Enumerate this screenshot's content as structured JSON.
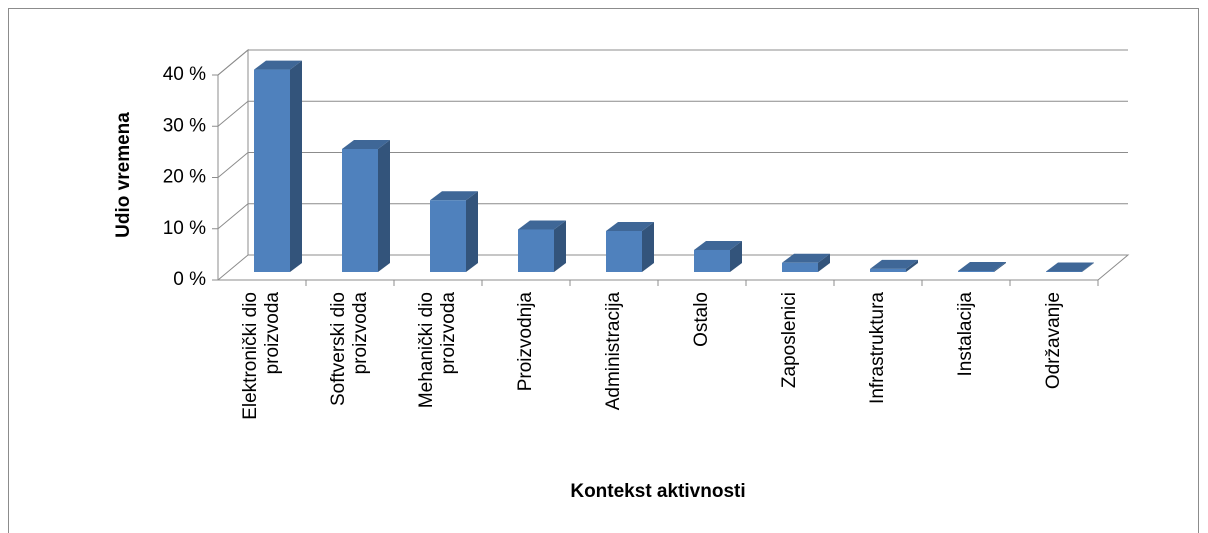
{
  "chart_data": {
    "type": "bar3d",
    "y_axis_label": "Udio vremena",
    "x_axis_label": "Kontekst aktivnosti",
    "categories": [
      "Elektronički dio proizvoda",
      "Softverski dio proizvoda",
      "Mehanički dio proizvoda",
      "Proizvodnja",
      "Administracija",
      "Ostalo",
      "Zaposlenici",
      "Infrastruktura",
      "Instalacija",
      "Održavanje"
    ],
    "values": [
      39.5,
      24,
      14,
      8.3,
      8,
      4.3,
      1.8,
      0.6,
      0.2,
      0.1
    ],
    "color": "#4f81bd",
    "ylim": [
      0,
      40
    ],
    "yticks": [
      {
        "value": 0,
        "label": "0 %"
      },
      {
        "value": 10,
        "label": "10 %"
      },
      {
        "value": 20,
        "label": "20 %"
      },
      {
        "value": 30,
        "label": "30 %"
      },
      {
        "value": 40,
        "label": "40 %"
      }
    ],
    "grid": true
  }
}
